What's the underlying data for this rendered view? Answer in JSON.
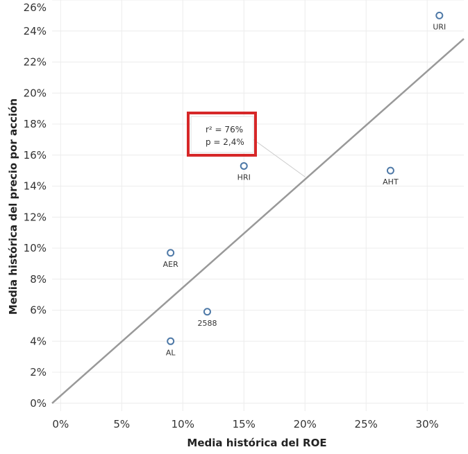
{
  "chart_data": {
    "type": "scatter",
    "xlabel": "Media histórica del ROE",
    "ylabel": "Media histórica del precio por acción",
    "xlim": [
      -0.7,
      33
    ],
    "ylim": [
      -0.5,
      26
    ],
    "x_ticks": [
      "0%",
      "5%",
      "10%",
      "15%",
      "20%",
      "25%",
      "30%"
    ],
    "x_tick_values": [
      0,
      5,
      10,
      15,
      20,
      25,
      30
    ],
    "y_ticks": [
      "0%",
      "2%",
      "4%",
      "6%",
      "8%",
      "10%",
      "12%",
      "14%",
      "16%",
      "18%",
      "20%",
      "22%",
      "24%",
      "26%"
    ],
    "y_tick_values": [
      0,
      2,
      4,
      6,
      8,
      10,
      12,
      14,
      16,
      18,
      20,
      22,
      24,
      26
    ],
    "points": [
      {
        "label": "URI",
        "x": 31,
        "y": 25
      },
      {
        "label": "HRI",
        "x": 15,
        "y": 15.3
      },
      {
        "label": "AHT",
        "x": 27,
        "y": 15
      },
      {
        "label": "AER",
        "x": 9,
        "y": 9.7
      },
      {
        "label": "2588",
        "x": 12,
        "y": 5.9
      },
      {
        "label": "AL",
        "x": 9,
        "y": 4
      }
    ],
    "trend_line": {
      "x": [
        -0.7,
        33
      ],
      "y": [
        0,
        23.5
      ]
    },
    "annotation": {
      "lines": [
        "r² = 76%",
        "p = 2,4%"
      ],
      "anchor": {
        "x": 20,
        "y": 14.6
      }
    },
    "grid": true,
    "colors": {
      "point": "#4e79a7",
      "trend": "#999999",
      "grid": "#ececec",
      "highlight": "#d62728"
    }
  }
}
